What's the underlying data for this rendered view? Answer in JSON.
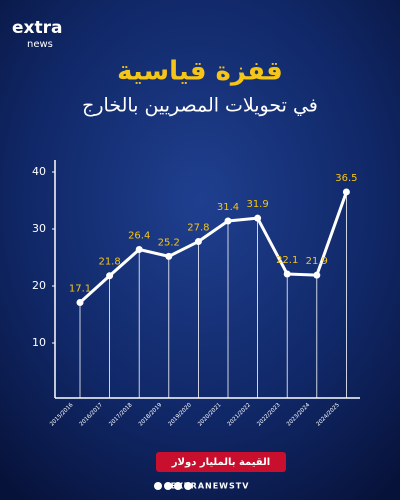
{
  "logo": {
    "top": "extra",
    "bottom": "news"
  },
  "chart_data": {
    "type": "line",
    "title": "قفزة قياسية",
    "subtitle": "في تحويلات المصريين بالخارج",
    "categories": [
      "2015/2016",
      "2016/2017",
      "2017/2018",
      "2018/2019",
      "2019/2020",
      "2020/2021",
      "2021/2022",
      "2022/2023",
      "2023/2024",
      "2024/2025"
    ],
    "values": [
      17.1,
      21.8,
      26.4,
      25.2,
      27.8,
      31.4,
      31.9,
      22.1,
      21.9,
      36.5
    ],
    "color": "#ffffff",
    "label_color": "#f5c518",
    "ylim": [
      0,
      40
    ],
    "yticks": [
      10,
      20,
      30,
      40
    ],
    "unit_note": "القيمة بالمليار دولار"
  },
  "footer": "EXTRANEWSTV"
}
